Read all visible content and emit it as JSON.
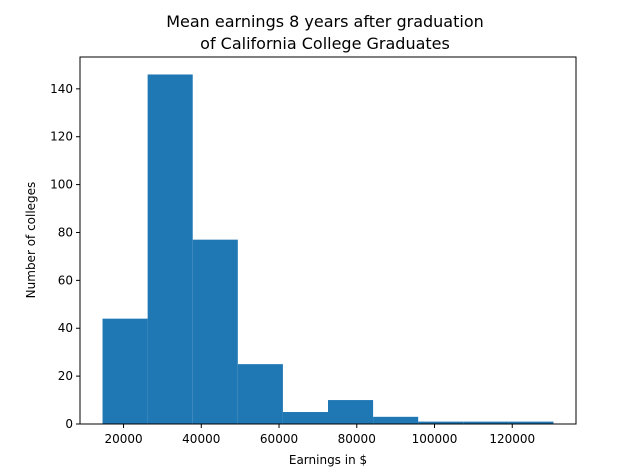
{
  "chart_data": {
    "type": "bar",
    "title": "Mean earnings 8 years after graduation",
    "subtitle": "of California College Graduates",
    "xlabel": "Earnings in $",
    "ylabel": "Number of colleges",
    "bin_edges": [
      14600,
      26200,
      37800,
      49400,
      61000,
      72600,
      84200,
      95800,
      107400,
      119000,
      130600
    ],
    "values": [
      44,
      146,
      77,
      25,
      5,
      10,
      3,
      1,
      1,
      1
    ],
    "xlim": [
      8800,
      136400
    ],
    "ylim": [
      0,
      153.3
    ],
    "xticks": [
      20000,
      40000,
      60000,
      80000,
      100000,
      120000
    ],
    "xtick_labels": [
      "20000",
      "40000",
      "60000",
      "80000",
      "100000",
      "120000"
    ],
    "yticks": [
      0,
      20,
      40,
      60,
      80,
      100,
      120,
      140
    ],
    "ytick_labels": [
      "0",
      "20",
      "40",
      "60",
      "80",
      "100",
      "120",
      "140"
    ],
    "bar_color": "#1f77b4",
    "grid": false,
    "legend": "none"
  }
}
